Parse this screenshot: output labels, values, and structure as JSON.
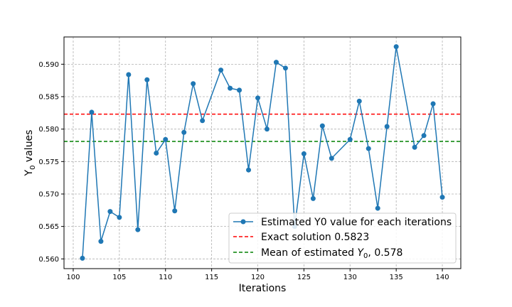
{
  "chart_data": {
    "type": "line",
    "title": "",
    "xlabel": "Iterations",
    "ylabel_main": "Y",
    "ylabel_sub": "0",
    "ylabel_rest": " values",
    "xlim": [
      99,
      142
    ],
    "ylim": [
      0.5585,
      0.5942
    ],
    "xticks": [
      100,
      105,
      110,
      115,
      120,
      125,
      130,
      135,
      140
    ],
    "yticks": [
      0.56,
      0.565,
      0.57,
      0.575,
      0.58,
      0.585,
      0.59
    ],
    "xtick_labels": [
      "100",
      "105",
      "110",
      "115",
      "120",
      "125",
      "130",
      "135",
      "140"
    ],
    "ytick_labels": [
      "0.560",
      "0.565",
      "0.570",
      "0.575",
      "0.580",
      "0.585",
      "0.590"
    ],
    "grid": true,
    "legend_position": "lower-right",
    "series": [
      {
        "name": "Estimated Y0 value for each iterations",
        "color": "#1f77b4",
        "marker": "circle",
        "x": [
          101,
          102,
          103,
          104,
          105,
          106,
          107,
          108,
          109,
          110,
          111,
          112,
          113,
          114,
          116,
          117,
          118,
          119,
          120,
          121,
          122,
          123,
          124,
          125,
          126,
          127,
          128,
          130,
          131,
          132,
          133,
          134,
          135,
          137,
          138,
          139,
          140
        ],
        "y": [
          0.5601,
          0.5826,
          0.5627,
          0.5673,
          0.5664,
          0.5884,
          0.5645,
          0.5876,
          0.5763,
          0.5784,
          0.5674,
          0.5795,
          0.587,
          0.5813,
          0.5891,
          0.5863,
          0.586,
          0.5737,
          0.5848,
          0.58,
          0.5903,
          0.5894,
          0.565,
          0.5762,
          0.5693,
          0.5805,
          0.5755,
          0.5784,
          0.5843,
          0.577,
          0.5678,
          0.5804,
          0.5927,
          0.5772,
          0.579,
          0.5839,
          0.5695
        ]
      }
    ],
    "hlines": [
      {
        "label": "Exact solution 0.5823",
        "value": 0.5823,
        "color": "#ff0000",
        "style": "dashed"
      },
      {
        "label_prefix": "Mean of estimated ",
        "label_var": "Y",
        "label_sub": "0",
        "label_suffix": ", 0.578",
        "value": 0.5781,
        "color": "#008000",
        "style": "dashed"
      }
    ]
  }
}
